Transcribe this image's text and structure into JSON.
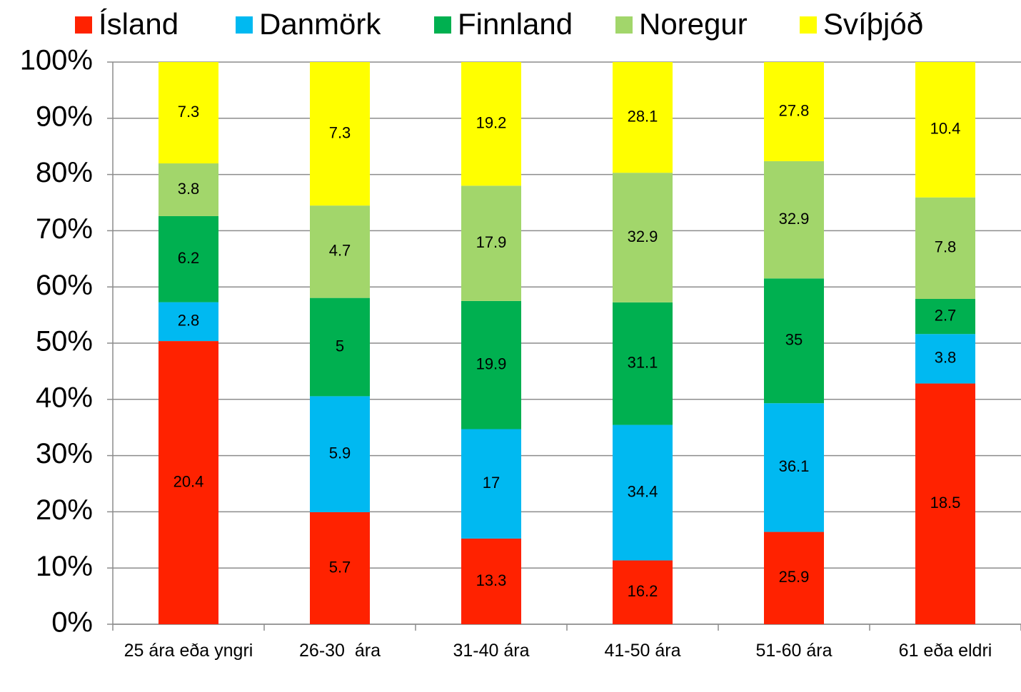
{
  "chart_data": {
    "type": "bar",
    "stack": "percent",
    "categories": [
      "25 ára eða yngri",
      "26-30  ára",
      "31-40 ára",
      "41-50 ára",
      "51-60 ára",
      "61 eða eldri"
    ],
    "series": [
      {
        "name": "Ísland",
        "color": "#ff2200",
        "values": [
          20.4,
          5.7,
          13.3,
          16.2,
          25.9,
          18.5
        ]
      },
      {
        "name": "Danmörk",
        "color": "#00b9f1",
        "values": [
          2.8,
          5.9,
          17,
          34.4,
          36.1,
          3.8
        ]
      },
      {
        "name": "Finnland",
        "color": "#00b050",
        "values": [
          6.2,
          5,
          19.9,
          31.1,
          35,
          2.7
        ]
      },
      {
        "name": "Noregur",
        "color": "#a2d66b",
        "values": [
          3.8,
          4.7,
          17.9,
          32.9,
          32.9,
          7.8
        ]
      },
      {
        "name": "Svíþjóð",
        "color": "#ffff00",
        "values": [
          7.3,
          7.3,
          19.2,
          28.1,
          27.8,
          10.4
        ]
      }
    ],
    "ylim": [
      0,
      100
    ],
    "yticks": [
      {
        "value": 0,
        "label": "0%"
      },
      {
        "value": 10,
        "label": "10%"
      },
      {
        "value": 20,
        "label": "20%"
      },
      {
        "value": 30,
        "label": "30%"
      },
      {
        "value": 40,
        "label": "40%"
      },
      {
        "value": 50,
        "label": "50%"
      },
      {
        "value": 60,
        "label": "60%"
      },
      {
        "value": 70,
        "label": "70%"
      },
      {
        "value": 80,
        "label": "80%"
      },
      {
        "value": 90,
        "label": "90%"
      },
      {
        "value": 100,
        "label": "100%"
      }
    ],
    "grid": true,
    "legend": "top"
  }
}
